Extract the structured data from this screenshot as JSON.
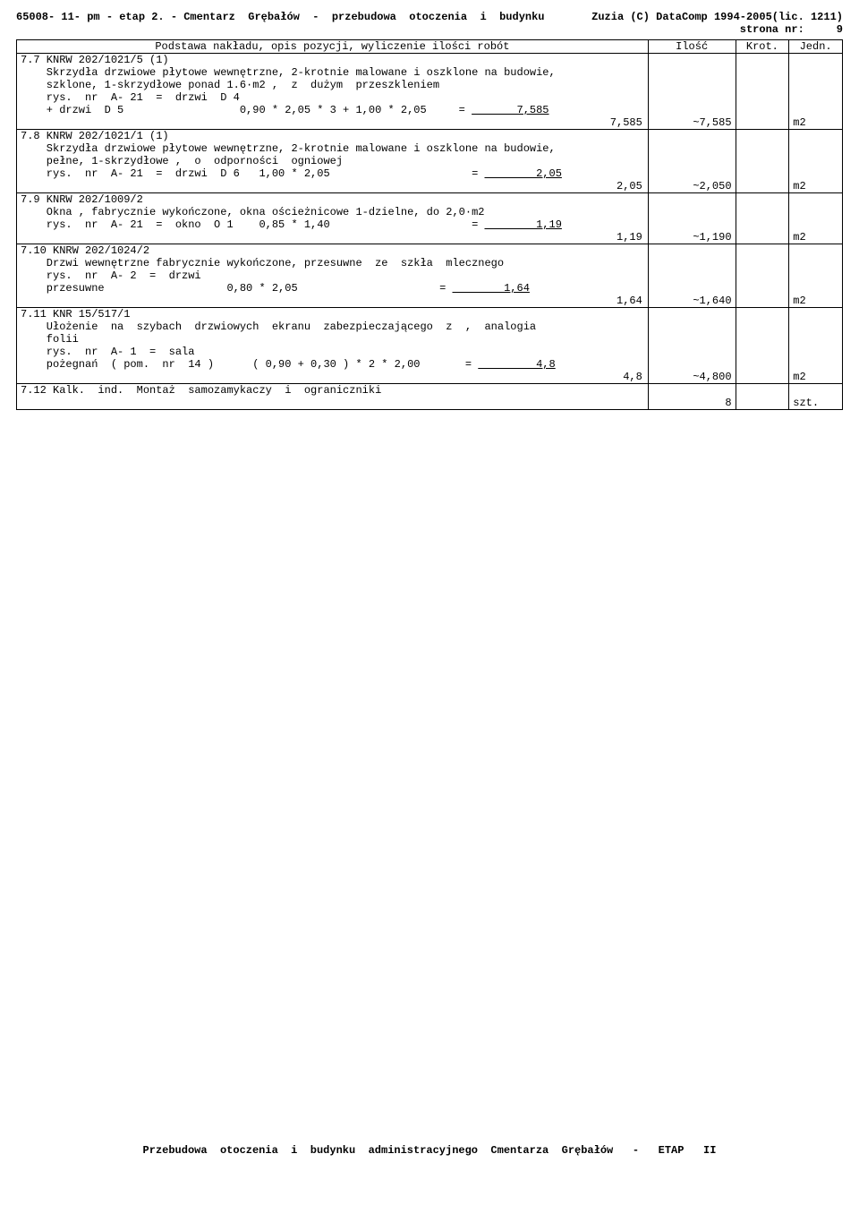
{
  "header": {
    "left": "65008- 11- pm - etap 2. - Cmentarz  Grębałów  -  przebudowa  otoczenia  i  budynku",
    "right": "Zuzia (C) DataComp 1994-2005(lic. 1211)",
    "strona_label": "strona nr:",
    "strona_nr": "9"
  },
  "table": {
    "headers": {
      "desc": "Podstawa nakładu, opis pozycji, wyliczenie ilości robót",
      "ilosc": "Ilość",
      "krot": "Krot.",
      "jedn": "Jedn."
    },
    "rows": [
      {
        "ref": "7.7 KNRW 202/1021/5 (1)",
        "lines": [
          "    Skrzydła drzwiowe płytowe wewnętrzne, 2-krotnie malowane i oszklone na budowie,",
          "    szklone, 1-skrzydłowe ponad 1.6·m2 ,  z  dużym  przeszkleniem",
          "    rys.  nr  A- 21  =  drzwi  D 4"
        ],
        "calc_label": "    + drzwi  D 5                  0,90 * 2,05 * 3 + 1,00 * 2,05     = ",
        "calc_val": "       7,585",
        "sum_val": "7,585",
        "ilosc": "~7,585",
        "jedn": "m2"
      },
      {
        "ref": "7.8 KNRW 202/1021/1 (1)",
        "lines": [
          "    Skrzydła drzwiowe płytowe wewnętrzne, 2-krotnie malowane i oszklone na budowie,",
          "    pełne, 1-skrzydłowe ,  o  odporności  ogniowej"
        ],
        "calc_label": "    rys.  nr  A- 21  =  drzwi  D 6   1,00 * 2,05                      = ",
        "calc_val": "        2,05",
        "sum_val": "2,05",
        "ilosc": "~2,050",
        "jedn": "m2"
      },
      {
        "ref": "7.9 KNRW 202/1009/2",
        "lines": [
          "    Okna , fabrycznie wykończone, okna ościeżnicowe 1-dzielne, do 2,0·m2"
        ],
        "calc_label": "    rys.  nr  A- 21  =  okno  O 1    0,85 * 1,40                      = ",
        "calc_val": "        1,19",
        "sum_val": "1,19",
        "ilosc": "~1,190",
        "jedn": "m2"
      },
      {
        "ref": "7.10 KNRW 202/1024/2",
        "lines": [
          "    Drzwi wewnętrzne fabrycznie wykończone, przesuwne  ze  szkła  mlecznego",
          "    rys.  nr  A- 2  =  drzwi"
        ],
        "calc_label": "    przesuwne                   0,80 * 2,05                      = ",
        "calc_val": "        1,64",
        "sum_val": "1,64",
        "ilosc": "~1,640",
        "jedn": "m2"
      },
      {
        "ref": "7.11 KNR 15/517/1",
        "lines": [
          "    Ułożenie  na  szybach  drzwiowych  ekranu  zabezpieczającego  z  ,  analogia",
          "    folii",
          "    rys.  nr  A- 1  =  sala"
        ],
        "calc_label": "    pożegnań  ( pom.  nr  14 )      ( 0,90 + 0,30 ) * 2 * 2,00       = ",
        "calc_val": "         4,8",
        "sum_val": "4,8",
        "ilosc": "~4,800",
        "jedn": "m2"
      },
      {
        "ref": "7.12 Kalk.  ind.  Montaż  samozamykaczy  i  ograniczniki",
        "lines": [],
        "calc_label": "",
        "calc_val": "",
        "sum_val": "",
        "ilosc": "8",
        "jedn": "szt."
      }
    ]
  },
  "footer": "Przebudowa  otoczenia  i  budynku  administracyjnego  Cmentarza  Grębałów   -   ETAP   II"
}
